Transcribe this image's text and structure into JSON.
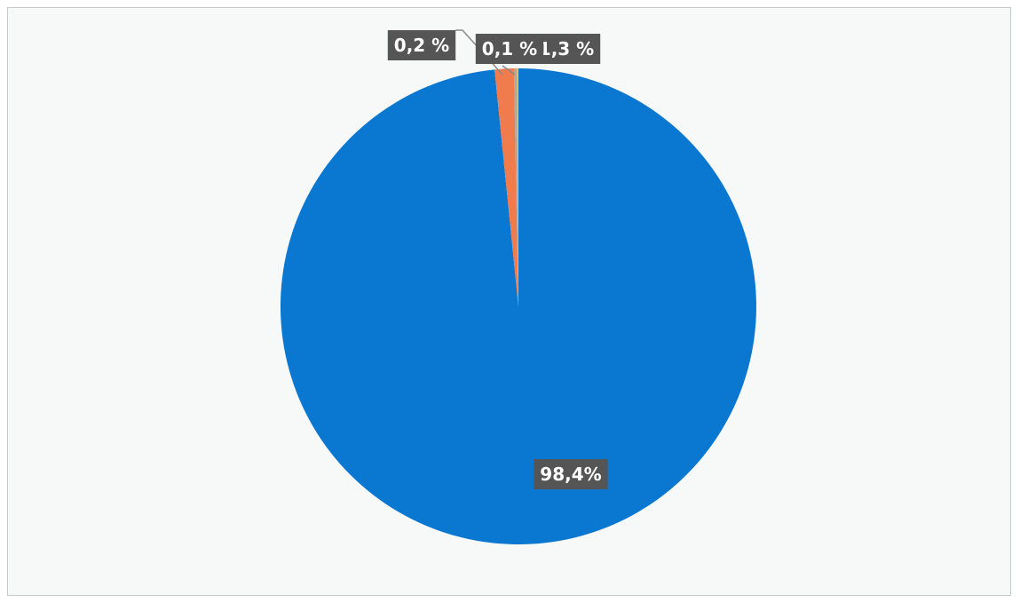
{
  "chart_data": {
    "type": "pie",
    "slices": [
      {
        "label": "98,4%",
        "value": 98.4,
        "color": "#0a77d1"
      },
      {
        "label": "1,3 %",
        "value": 1.3,
        "color": "#f07c4e"
      },
      {
        "label": "0,2 %",
        "value": 0.2,
        "color": "#a9a9a9"
      },
      {
        "label": "0,1 %",
        "value": 0.1,
        "color": "#f6bf26"
      }
    ],
    "title": "",
    "legend": "none",
    "label_background": "#555555",
    "background": "#f7f8f8"
  }
}
